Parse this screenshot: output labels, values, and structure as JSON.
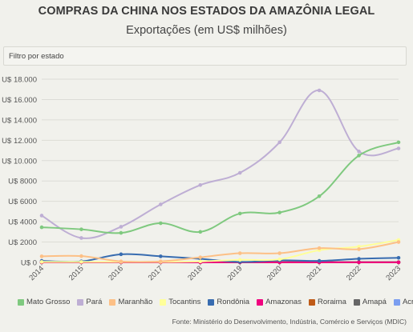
{
  "header": {
    "title": "COMPRAS DA CHINA NOS ESTADOS DA AMAZÔNIA LEGAL",
    "subtitle": "Exportações (em US$ milhões)"
  },
  "filter": {
    "label": "Filtro por estado"
  },
  "source": "Fonte: Ministério do Desenvolvimento, Indústria, Comércio e Serviços (MDIC)",
  "chart_data": {
    "type": "line",
    "x": [
      "2014",
      "2015",
      "2016",
      "2017",
      "2018",
      "2019",
      "2020",
      "2021",
      "2022",
      "2023"
    ],
    "ylim": [
      0,
      18000
    ],
    "yticks": [
      0,
      2000,
      4000,
      6000,
      8000,
      10000,
      12000,
      14000,
      16000,
      18000
    ],
    "ytick_labels": [
      "U$ 0",
      "U$ 2000",
      "U$ 4000",
      "U$ 6000",
      "U$ 8000",
      "U$ 10.000",
      "U$ 12.000",
      "U$ 14.000",
      "U$ 16.000",
      "U$ 18.000"
    ],
    "grid": true,
    "legend_position": "bottom",
    "series": [
      {
        "name": "Mato Grosso",
        "color": "#7fc97f",
        "values": [
          3450,
          3250,
          2900,
          3850,
          3000,
          4800,
          4900,
          6500,
          10500,
          11800
        ]
      },
      {
        "name": "Pará",
        "color": "#beaed4",
        "values": [
          4600,
          2400,
          3500,
          5700,
          7600,
          8800,
          11800,
          16900,
          10900,
          11200
        ]
      },
      {
        "name": "Maranhão",
        "color": "#fdc086",
        "values": [
          600,
          620,
          100,
          100,
          500,
          900,
          900,
          1400,
          1300,
          2000
        ]
      },
      {
        "name": "Tocantins",
        "color": "#ffff99",
        "values": [
          50,
          50,
          50,
          50,
          100,
          250,
          300,
          1200,
          1550,
          2200
        ]
      },
      {
        "name": "Rondônia",
        "color": "#386cb0",
        "values": [
          150,
          100,
          800,
          600,
          350,
          50,
          200,
          150,
          350,
          450
        ]
      },
      {
        "name": "Amazonas",
        "color": "#f0027f",
        "values": [
          10,
          10,
          10,
          10,
          10,
          10,
          10,
          10,
          10,
          10
        ]
      },
      {
        "name": "Roraima",
        "color": "#bf5b17",
        "values": [
          5,
          5,
          5,
          5,
          5,
          5,
          5,
          5,
          5,
          5
        ]
      },
      {
        "name": "Amapá",
        "color": "#666666",
        "values": [
          30,
          30,
          30,
          30,
          30,
          30,
          30,
          30,
          30,
          30
        ]
      },
      {
        "name": "Acre",
        "color": "#7b9ef0",
        "values": [
          5,
          5,
          5,
          5,
          5,
          5,
          5,
          5,
          5,
          5
        ]
      }
    ]
  }
}
